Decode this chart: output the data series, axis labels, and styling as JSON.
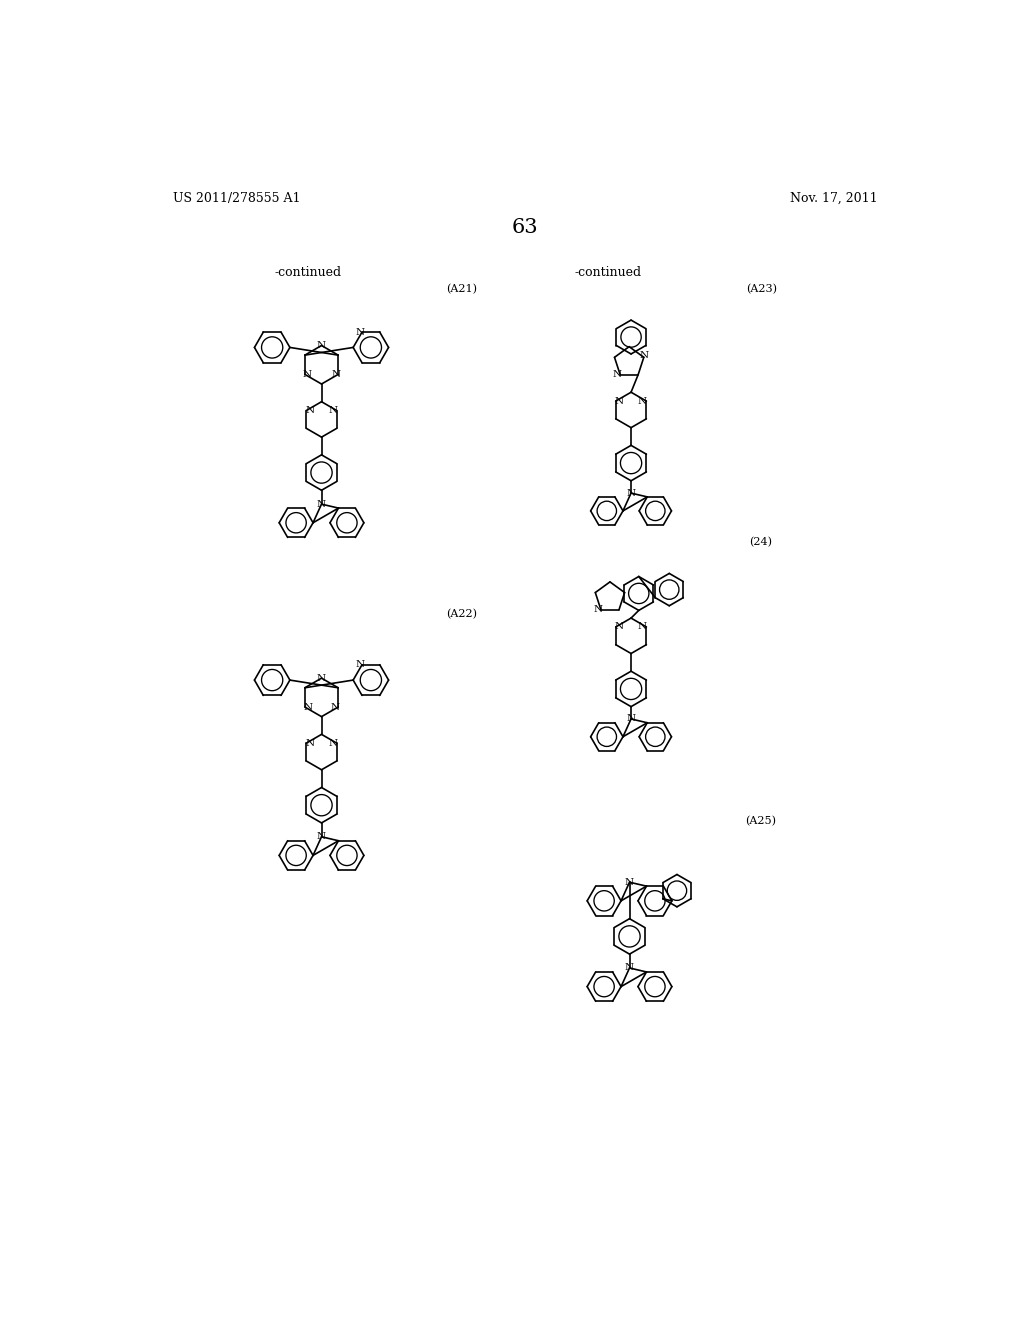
{
  "background_color": "#ffffff",
  "text_color": "#000000",
  "page_header_left": "US 2011/278555 A1",
  "page_header_right": "Nov. 17, 2011",
  "page_number": "63",
  "labels": {
    "continued_left": "-continued",
    "continued_right": "-continued",
    "A21": "(A21)",
    "A22": "(A22)",
    "A23": "(A23)",
    "A24": "(24)",
    "A25": "(A25)"
  }
}
